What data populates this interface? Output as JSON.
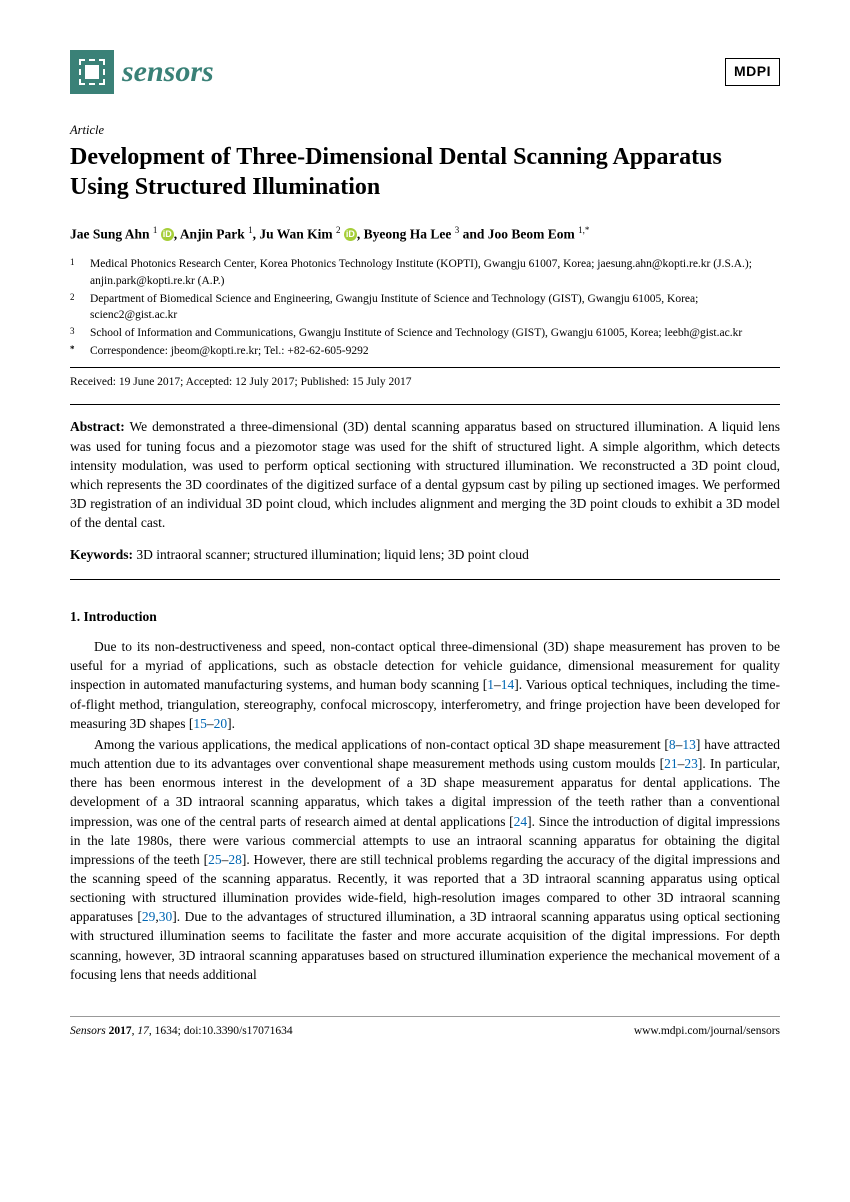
{
  "header": {
    "journal_name": "sensors",
    "publisher": "MDPI"
  },
  "article_type": "Article",
  "title": "Development of Three-Dimensional Dental Scanning Apparatus Using Structured Illumination",
  "authors": [
    {
      "name": "Jae Sung Ahn",
      "sup": "1",
      "orcid": true
    },
    {
      "name": "Anjin Park",
      "sup": "1"
    },
    {
      "name": "Ju Wan Kim",
      "sup": "2",
      "orcid": true
    },
    {
      "name": "Byeong Ha Lee",
      "sup": "3"
    },
    {
      "name": "Joo Beom Eom",
      "sup": "1,*"
    }
  ],
  "affiliations": [
    {
      "n": "1",
      "text": "Medical Photonics Research Center, Korea Photonics Technology Institute (KOPTI), Gwangju 61007, Korea; jaesung.ahn@kopti.re.kr (J.S.A.); anjin.park@kopti.re.kr (A.P.)"
    },
    {
      "n": "2",
      "text": "Department of Biomedical Science and Engineering, Gwangju Institute of Science and Technology (GIST), Gwangju 61005, Korea; scienc2@gist.ac.kr"
    },
    {
      "n": "3",
      "text": "School of Information and Communications, Gwangju Institute of Science and Technology (GIST), Gwangju 61005, Korea; leebh@gist.ac.kr"
    },
    {
      "n": "*",
      "text": "Correspondence: jbeom@kopti.re.kr; Tel.: +82-62-605-9292"
    }
  ],
  "dates": "Received: 19 June 2017; Accepted: 12 July 2017; Published: 15 July 2017",
  "abstract_label": "Abstract:",
  "abstract_text": "We demonstrated a three-dimensional (3D) dental scanning apparatus based on structured illumination. A liquid lens was used for tuning focus and a piezomotor stage was used for the shift of structured light. A simple algorithm, which detects intensity modulation, was used to perform optical sectioning with structured illumination. We reconstructed a 3D point cloud, which represents the 3D coordinates of the digitized surface of a dental gypsum cast by piling up sectioned images. We performed 3D registration of an individual 3D point cloud, which includes alignment and merging the 3D point clouds to exhibit a 3D model of the dental cast.",
  "keywords_label": "Keywords:",
  "keywords_text": "3D intraoral scanner; structured illumination; liquid lens; 3D point cloud",
  "section1": {
    "heading": "1. Introduction",
    "p1_a": "Due to its non-destructiveness and speed, non-contact optical three-dimensional (3D) shape measurement has proven to be useful for a myriad of applications, such as obstacle detection for vehicle guidance, dimensional measurement for quality inspection in automated manufacturing systems, and human body scanning [",
    "p1_c1": "1",
    "p1_dash1": "–",
    "p1_c2": "14",
    "p1_b": "]. Various optical techniques, including the time-of-flight method, triangulation, stereography, confocal microscopy, interferometry, and fringe projection have been developed for measuring 3D shapes [",
    "p1_c3": "15",
    "p1_dash2": "–",
    "p1_c4": "20",
    "p1_end": "].",
    "p2_a": "Among the various applications, the medical applications of non-contact optical 3D shape measurement [",
    "p2_c1": "8",
    "p2_d1": "–",
    "p2_c2": "13",
    "p2_b": "] have attracted much attention due to its advantages over conventional shape measurement methods using custom moulds [",
    "p2_c3": "21",
    "p2_d2": "–",
    "p2_c4": "23",
    "p2_c": "]. In particular, there has been enormous interest in the development of a 3D shape measurement apparatus for dental applications. The development of a 3D intraoral scanning apparatus, which takes a digital impression of the teeth rather than a conventional impression, was one of the central parts of research aimed at dental applications [",
    "p2_c5": "24",
    "p2_d": "]. Since the introduction of digital impressions in the late 1980s, there were various commercial attempts to use an intraoral scanning apparatus for obtaining the digital impressions of the teeth [",
    "p2_c6": "25",
    "p2_d3": "–",
    "p2_c7": "28",
    "p2_e": "]. However, there are still technical problems regarding the accuracy of the digital impressions and the scanning speed of the scanning apparatus. Recently, it was reported that a 3D intraoral scanning apparatus using optical sectioning with structured illumination provides wide-field, high-resolution images compared to other 3D intraoral scanning apparatuses [",
    "p2_c8": "29",
    "p2_comma": ",",
    "p2_c9": "30",
    "p2_f": "]. Due to the advantages of structured illumination, a 3D intraoral scanning apparatus using optical sectioning with structured illumination seems to facilitate the faster and more accurate acquisition of the digital impressions. For depth scanning, however, 3D intraoral scanning apparatuses based on structured illumination experience the mechanical movement of a focusing lens that needs additional"
  },
  "footer": {
    "left_journal": "Sensors",
    "left_year": "2017",
    "left_vol": "17",
    "left_art": "1634",
    "left_doi": "doi:10.3390/s17071634",
    "right": "www.mdpi.com/journal/sensors"
  },
  "colors": {
    "brand": "#3a8177",
    "orcid": "#a6ce39",
    "cite": "#0066b3"
  }
}
